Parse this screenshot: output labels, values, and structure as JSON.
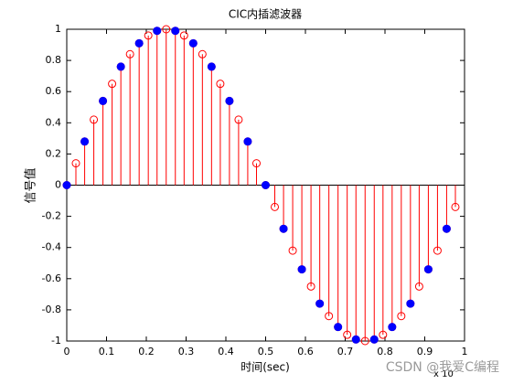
{
  "chart_data": {
    "type": "stem",
    "title": "CIC内插滤波器",
    "x_label": "时间(sec)",
    "y_label": "信号值",
    "x_exponent_label": "x 10",
    "watermark": "CSDN @我爱C编程",
    "series": [
      {
        "color": "#ff0000",
        "marker": "open",
        "x": [
          0,
          0.023,
          0.045,
          0.068,
          0.091,
          0.114,
          0.136,
          0.159,
          0.182,
          0.205,
          0.227,
          0.25,
          0.273,
          0.295,
          0.318,
          0.341,
          0.364,
          0.386,
          0.409,
          0.432,
          0.455,
          0.477,
          0.5,
          0.523,
          0.545,
          0.568,
          0.591,
          0.614,
          0.636,
          0.659,
          0.682,
          0.705,
          0.727,
          0.75,
          0.773,
          0.795,
          0.818,
          0.841,
          0.864,
          0.886,
          0.909,
          0.932,
          0.955,
          0.977
        ],
        "values": [
          0,
          0.14,
          0.28,
          0.42,
          0.54,
          0.65,
          0.76,
          0.84,
          0.91,
          0.96,
          0.99,
          1,
          0.99,
          0.96,
          0.91,
          0.84,
          0.76,
          0.65,
          0.54,
          0.42,
          0.28,
          0.14,
          0,
          -0.14,
          -0.28,
          -0.42,
          -0.54,
          -0.65,
          -0.76,
          -0.84,
          -0.91,
          -0.96,
          -0.99,
          -1,
          -0.99,
          -0.96,
          -0.91,
          -0.84,
          -0.76,
          -0.65,
          -0.54,
          -0.42,
          -0.28,
          -0.14
        ]
      },
      {
        "color": "#0000ff",
        "marker": "filled",
        "x": [
          0,
          0.045,
          0.091,
          0.136,
          0.182,
          0.227,
          0.273,
          0.318,
          0.364,
          0.409,
          0.455,
          0.5,
          0.545,
          0.591,
          0.636,
          0.682,
          0.727,
          0.773,
          0.818,
          0.864,
          0.909,
          0.955
        ],
        "values": [
          0,
          0.28,
          0.54,
          0.76,
          0.91,
          0.99,
          0.99,
          0.91,
          0.76,
          0.54,
          0.28,
          0,
          -0.28,
          -0.54,
          -0.76,
          -0.91,
          -0.99,
          -0.99,
          -0.91,
          -0.76,
          -0.54,
          -0.28
        ]
      }
    ],
    "xlim": [
      0,
      1
    ],
    "xticks": [
      0,
      0.1,
      0.2,
      0.3,
      0.4,
      0.5,
      0.6,
      0.7,
      0.8,
      0.9,
      1
    ],
    "ylim": [
      -1,
      1
    ],
    "yticks": [
      -1,
      -0.8,
      -0.6,
      -0.4,
      -0.2,
      0,
      0.2,
      0.4,
      0.6,
      0.8,
      1
    ]
  }
}
